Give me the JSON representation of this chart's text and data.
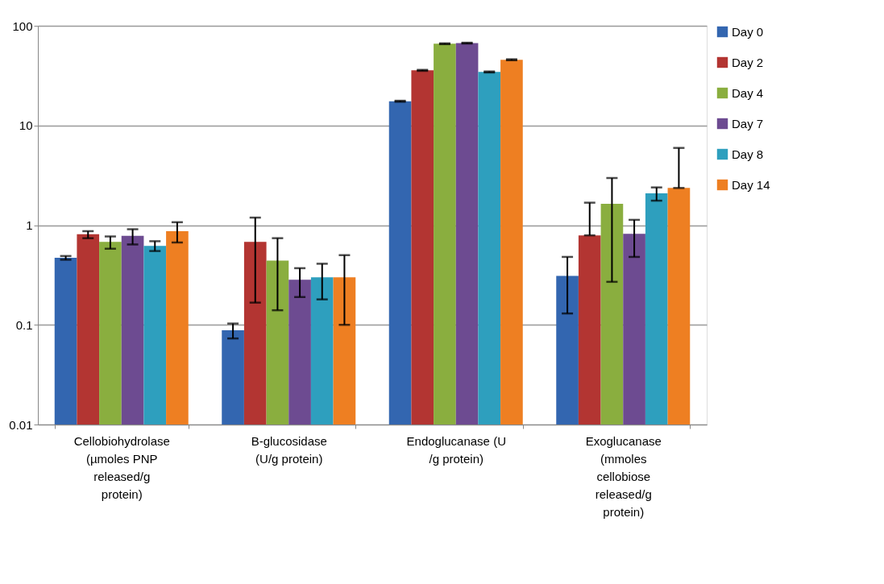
{
  "chart_data": {
    "type": "bar",
    "log": true,
    "grid": "y",
    "legend": "right",
    "categories": [
      "Cellobiohydrolase (µmoles PNP released/g protein)",
      "B-glucosidase (U/g protein)",
      "Endoglucanase (U /g protein)",
      "Exoglucanase (mmoles cellobiose released/g protein)"
    ],
    "ylim": [
      0.01,
      100
    ],
    "yticks": [
      0.01,
      0.1,
      1,
      10,
      100
    ],
    "series": [
      {
        "name": "Day 0",
        "color": "#3366b0",
        "values": [
          0.47,
          0.088,
          17.5,
          0.31
        ],
        "errors": [
          [
            0.45,
            0.49
          ],
          [
            0.073,
            0.103
          ],
          [
            17.3,
            17.7
          ],
          [
            0.13,
            0.48
          ]
        ]
      },
      {
        "name": "Day 2",
        "color": "#b33532",
        "values": [
          0.81,
          0.68,
          35.7,
          0.79
        ],
        "errors": [
          [
            0.74,
            0.87
          ],
          [
            0.167,
            1.19
          ],
          [
            35.3,
            36.1
          ],
          [
            0.79,
            1.68
          ]
        ]
      },
      {
        "name": "Day 4",
        "color": "#8aae3f",
        "values": [
          0.68,
          0.44,
          66,
          1.64
        ],
        "errors": [
          [
            0.58,
            0.77
          ],
          [
            0.14,
            0.74
          ],
          [
            65.4,
            66.6
          ],
          [
            0.27,
            2.97
          ]
        ]
      },
      {
        "name": "Day 7",
        "color": "#6d4b91",
        "values": [
          0.78,
          0.284,
          67,
          0.82
        ],
        "errors": [
          [
            0.64,
            0.91
          ],
          [
            0.19,
            0.37
          ],
          [
            66.4,
            67.6
          ],
          [
            0.48,
            1.13
          ]
        ]
      },
      {
        "name": "Day 8",
        "color": "#2e9fbe",
        "values": [
          0.62,
          0.3,
          34.4,
          2.09
        ],
        "errors": [
          [
            0.55,
            0.69
          ],
          [
            0.18,
            0.41
          ],
          [
            34.0,
            34.8
          ],
          [
            1.76,
            2.39
          ]
        ]
      },
      {
        "name": "Day 14",
        "color": "#ee7f22",
        "values": [
          0.87,
          0.3,
          45.6,
          2.36
        ],
        "errors": [
          [
            0.67,
            1.07
          ],
          [
            0.1,
            0.5
          ],
          [
            45.1,
            46.1
          ],
          [
            2.36,
            5.95
          ]
        ]
      }
    ]
  }
}
